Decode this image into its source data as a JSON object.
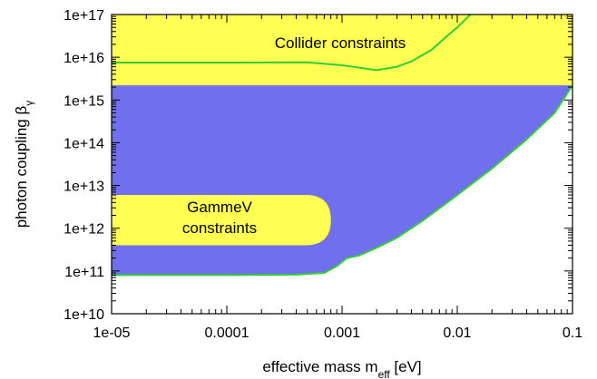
{
  "chart_data": {
    "type": "area",
    "title": "",
    "xlabel": "effective mass m",
    "xlabel_sub": "eff",
    "xlabel_unit": " [eV]",
    "ylabel": "photon coupling β",
    "ylabel_sub": "γ",
    "xscale": "log",
    "yscale": "log",
    "xlim": [
      1e-05,
      0.1
    ],
    "ylim": [
      10000000000.0,
      1e+17
    ],
    "x_ticks": [
      {
        "value": 1e-05,
        "label": "1e-05"
      },
      {
        "value": 0.0001,
        "label": "0.0001"
      },
      {
        "value": 0.001,
        "label": "0.001"
      },
      {
        "value": 0.01,
        "label": "0.01"
      },
      {
        "value": 0.1,
        "label": "0.1"
      }
    ],
    "y_ticks": [
      {
        "value": 10000000000.0,
        "label": "1e+10"
      },
      {
        "value": 100000000000.0,
        "label": "1e+11"
      },
      {
        "value": 1000000000000.0,
        "label": "1e+12"
      },
      {
        "value": 10000000000000.0,
        "label": "1e+13"
      },
      {
        "value": 100000000000000.0,
        "label": "1e+14"
      },
      {
        "value": 1000000000000000.0,
        "label": "1e+15"
      },
      {
        "value": 1e+16,
        "label": "1e+16"
      },
      {
        "value": 1e+17,
        "label": "1e+17"
      }
    ],
    "regions": [
      {
        "name": "collider-constraints",
        "label": "Collider constraints",
        "color": "#ffff54",
        "y_bottom": 2200000000000000.0,
        "y_top": 1e+17
      },
      {
        "name": "excluded-region",
        "color": "#7070ee",
        "boundary_lower": [
          [
            1e-05,
            80000000000.0
          ],
          [
            0.0001,
            80000000000.0
          ],
          [
            0.0004,
            82000000000.0
          ],
          [
            0.0007,
            90000000000.0
          ],
          [
            0.0009,
            130000000000.0
          ],
          [
            0.0011,
            200000000000.0
          ],
          [
            0.0014,
            230000000000.0
          ],
          [
            0.002,
            350000000000.0
          ],
          [
            0.003,
            600000000000.0
          ],
          [
            0.005,
            1500000000000.0
          ],
          [
            0.01,
            6000000000000.0
          ],
          [
            0.02,
            25000000000000.0
          ],
          [
            0.04,
            120000000000000.0
          ],
          [
            0.07,
            500000000000000.0
          ],
          [
            0.1,
            2200000000000000.0
          ]
        ],
        "y_top": 2200000000000000.0
      },
      {
        "name": "gammev-constraints",
        "label": [
          "GammeV",
          "constraints"
        ],
        "color": "#ffff54",
        "x_left": 1e-05,
        "x_right": 0.0008,
        "y_bottom": 400000000000.0,
        "y_top": 6000000000000.0
      }
    ],
    "series": [
      {
        "name": "collider-bound",
        "color": "#33cc33",
        "x": [
          1e-05,
          0.0001,
          0.0005,
          0.001,
          0.002,
          0.003,
          0.004,
          0.006,
          0.008,
          0.01,
          0.013
        ],
        "y": [
          7500000000000000.0,
          7500000000000000.0,
          7600000000000000.0,
          6500000000000000.0,
          5000000000000000.0,
          6000000000000000.0,
          8000000000000000.0,
          1.5e+16,
          3e+16,
          5e+16,
          1e+17
        ]
      },
      {
        "name": "lower-bound",
        "color": "#33cc33",
        "x": [
          1e-05,
          0.0001,
          0.0004,
          0.0007,
          0.0009,
          0.0011,
          0.0014,
          0.002,
          0.003,
          0.005,
          0.01,
          0.02,
          0.04,
          0.07,
          0.1
        ],
        "y": [
          80000000000.0,
          80000000000.0,
          82000000000.0,
          90000000000.0,
          130000000000.0,
          200000000000.0,
          230000000000.0,
          350000000000.0,
          600000000000.0,
          1500000000000.0,
          6000000000000.0,
          25000000000000.0,
          120000000000000.0,
          500000000000000.0,
          2200000000000000.0
        ]
      }
    ]
  }
}
